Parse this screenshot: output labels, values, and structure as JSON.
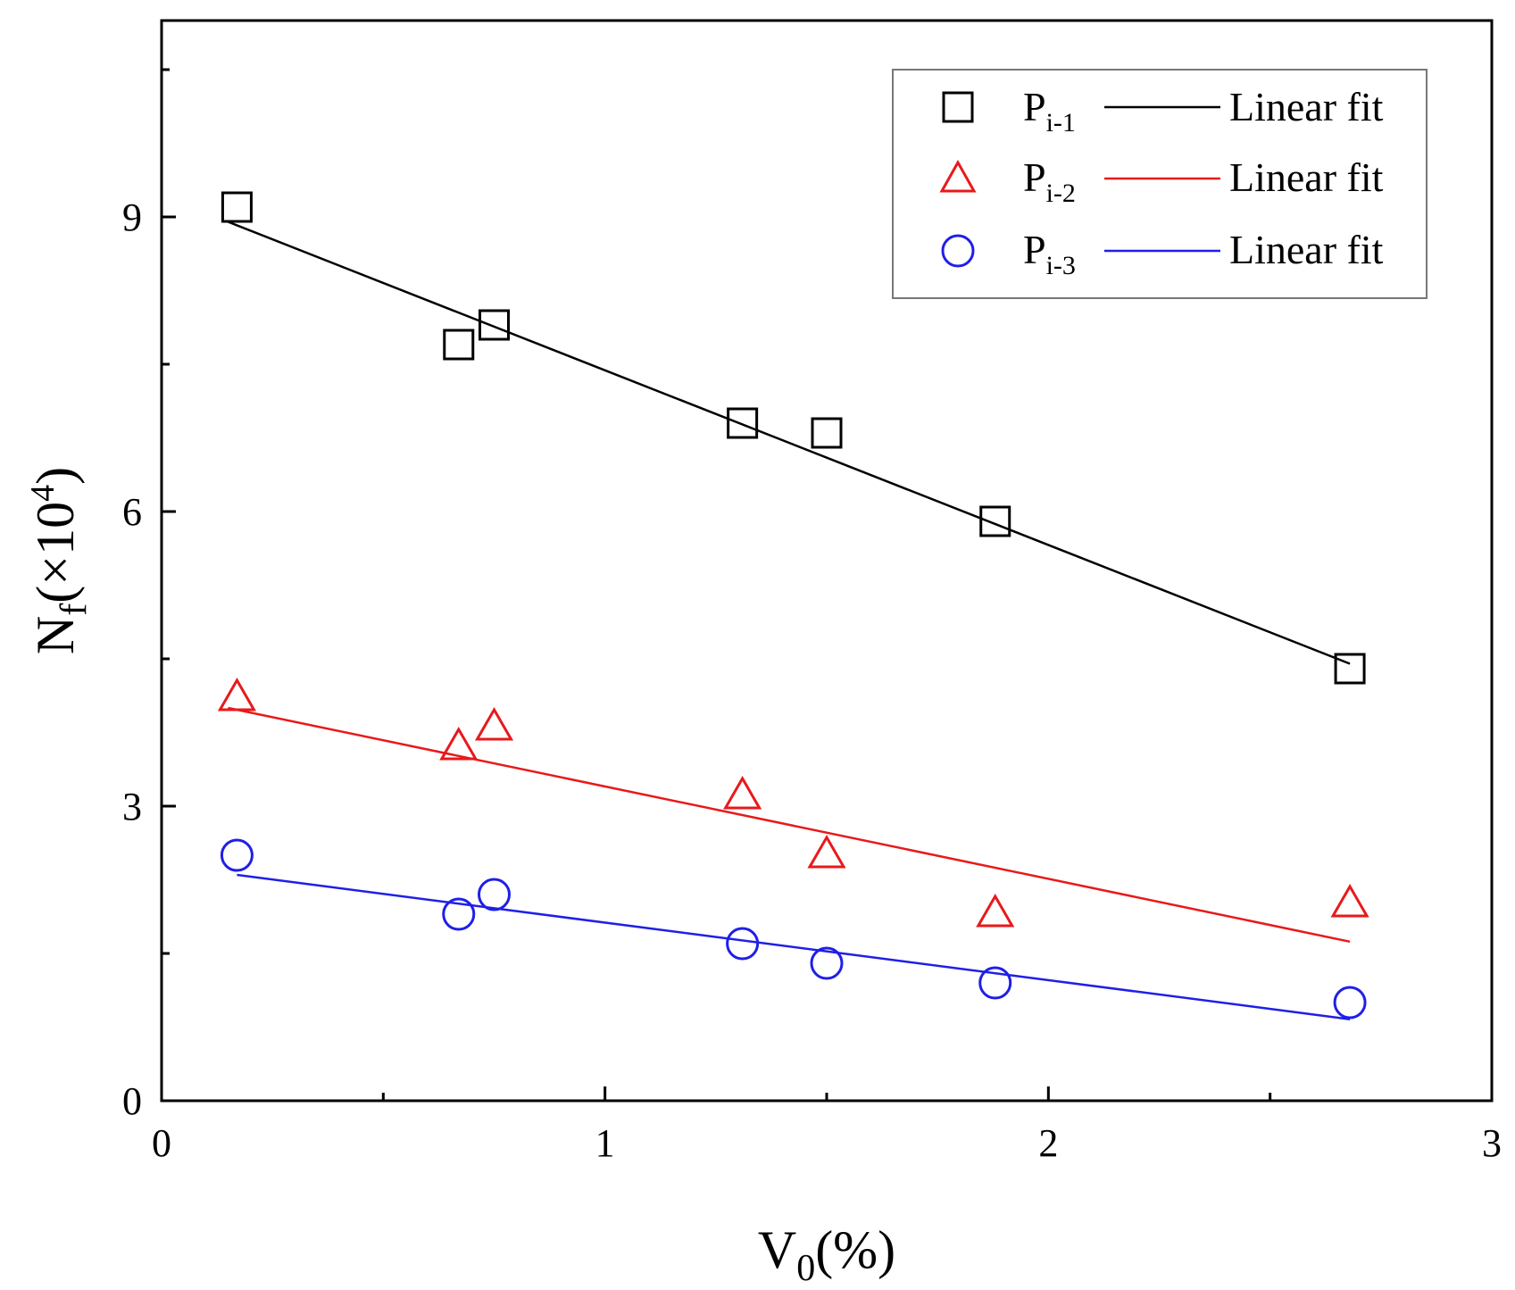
{
  "chart_data": {
    "type": "scatter",
    "xlabel": {
      "main": "V",
      "sub": "0",
      "tail": "(%)"
    },
    "ylabel": {
      "main": "N",
      "sub": "f",
      "mid": "(×10",
      "sup": "4",
      "tail": ")"
    },
    "xlim": [
      0,
      3
    ],
    "ylim": [
      0,
      11
    ],
    "x_ticks": [
      0,
      1,
      2,
      3
    ],
    "y_ticks": [
      0,
      3,
      6,
      9
    ],
    "grid": false,
    "legend_position": "top-right",
    "series": [
      {
        "name": "P",
        "name_sub": "i-1",
        "marker": "square",
        "color": "#000000",
        "x": [
          0.17,
          0.67,
          0.75,
          1.31,
          1.5,
          1.88,
          2.68
        ],
        "y": [
          9.1,
          7.7,
          7.9,
          6.9,
          6.8,
          5.9,
          4.4
        ],
        "fit_label": "Linear fit",
        "fit": {
          "x": [
            0.15,
            2.68
          ],
          "y": [
            8.95,
            4.45
          ]
        }
      },
      {
        "name": "P",
        "name_sub": "i-2",
        "marker": "triangle",
        "color": "#e8191b",
        "x": [
          0.17,
          0.67,
          0.75,
          1.31,
          1.5,
          1.88,
          2.68
        ],
        "y": [
          4.1,
          3.6,
          3.8,
          3.1,
          2.5,
          1.9,
          2.0
        ],
        "fit_label": "Linear fit",
        "fit": {
          "x": [
            0.15,
            2.68
          ],
          "y": [
            4.0,
            1.62
          ]
        }
      },
      {
        "name": "P",
        "name_sub": "i-3",
        "marker": "circle",
        "color": "#1f1fe8",
        "x": [
          0.17,
          0.67,
          0.75,
          1.31,
          1.5,
          1.88,
          2.68
        ],
        "y": [
          2.5,
          1.9,
          2.1,
          1.6,
          1.4,
          1.2,
          1.0
        ],
        "fit_label": "Linear fit",
        "fit": {
          "x": [
            0.17,
            2.68
          ],
          "y": [
            2.3,
            0.83
          ]
        }
      }
    ]
  }
}
